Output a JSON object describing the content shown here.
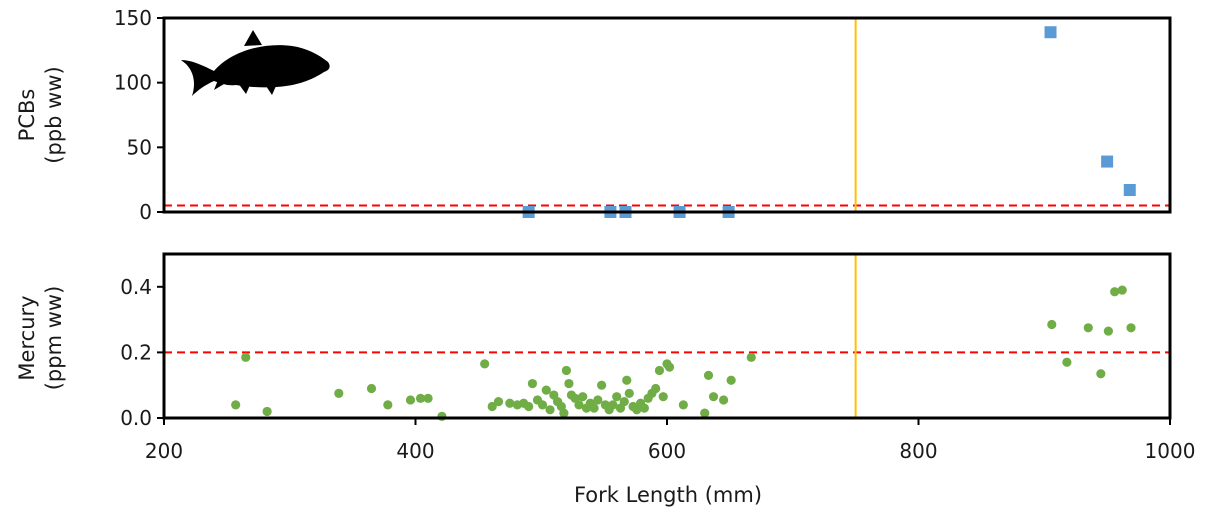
{
  "chart_data": [
    {
      "type": "scatter",
      "panel": "top",
      "ylabel": [
        "PCBs",
        "(ppb ww)"
      ],
      "xlim": [
        200,
        1000
      ],
      "ylim": [
        0,
        150
      ],
      "yticks": [
        0,
        50,
        100,
        150
      ],
      "y_tick_labels": [
        "0",
        "50",
        "100",
        "150"
      ],
      "grid": false,
      "marker": "square",
      "color": "#5b9bd5",
      "points": [
        {
          "x": 490,
          "y": 0
        },
        {
          "x": 555,
          "y": 0
        },
        {
          "x": 567,
          "y": 0
        },
        {
          "x": 610,
          "y": 0
        },
        {
          "x": 649,
          "y": 0
        },
        {
          "x": 905,
          "y": 139
        },
        {
          "x": 950,
          "y": 39
        },
        {
          "x": 968,
          "y": 17
        }
      ],
      "reference_lines": [
        {
          "kind": "horizontal",
          "value": 5,
          "style": "dashed",
          "color": "#ff0000"
        },
        {
          "kind": "vertical",
          "value": 750,
          "style": "solid",
          "color": "#ffc000"
        }
      ],
      "silhouette": "fish-icon"
    },
    {
      "type": "scatter",
      "panel": "bottom",
      "ylabel": [
        "Mercury",
        "(ppm ww)"
      ],
      "xlabel": "Fork Length (mm)",
      "xlim": [
        200,
        1000
      ],
      "ylim": [
        0,
        0.5
      ],
      "xticks": [
        200,
        400,
        600,
        800,
        1000
      ],
      "x_tick_labels": [
        "200",
        "400",
        "600",
        "800",
        "1000"
      ],
      "yticks": [
        0,
        0.2,
        0.4
      ],
      "y_tick_labels": [
        "0.0",
        "0.2",
        "0.4"
      ],
      "grid": false,
      "marker": "circle",
      "color": "#70ad47",
      "points": [
        {
          "x": 257,
          "y": 0.04
        },
        {
          "x": 265,
          "y": 0.185
        },
        {
          "x": 282,
          "y": 0.02
        },
        {
          "x": 339,
          "y": 0.075
        },
        {
          "x": 365,
          "y": 0.09
        },
        {
          "x": 378,
          "y": 0.04
        },
        {
          "x": 396,
          "y": 0.055
        },
        {
          "x": 404,
          "y": 0.06
        },
        {
          "x": 410,
          "y": 0.06
        },
        {
          "x": 421,
          "y": 0.005
        },
        {
          "x": 455,
          "y": 0.165
        },
        {
          "x": 461,
          "y": 0.035
        },
        {
          "x": 466,
          "y": 0.05
        },
        {
          "x": 475,
          "y": 0.045
        },
        {
          "x": 481,
          "y": 0.04
        },
        {
          "x": 486,
          "y": 0.045
        },
        {
          "x": 490,
          "y": 0.035
        },
        {
          "x": 493,
          "y": 0.105
        },
        {
          "x": 497,
          "y": 0.055
        },
        {
          "x": 501,
          "y": 0.04
        },
        {
          "x": 504,
          "y": 0.085
        },
        {
          "x": 507,
          "y": 0.025
        },
        {
          "x": 510,
          "y": 0.07
        },
        {
          "x": 513,
          "y": 0.05
        },
        {
          "x": 516,
          "y": 0.035
        },
        {
          "x": 518,
          "y": 0.015
        },
        {
          "x": 520,
          "y": 0.145
        },
        {
          "x": 522,
          "y": 0.105
        },
        {
          "x": 524,
          "y": 0.07
        },
        {
          "x": 527,
          "y": 0.06
        },
        {
          "x": 530,
          "y": 0.04
        },
        {
          "x": 533,
          "y": 0.065
        },
        {
          "x": 536,
          "y": 0.03
        },
        {
          "x": 539,
          "y": 0.045
        },
        {
          "x": 542,
          "y": 0.03
        },
        {
          "x": 545,
          "y": 0.055
        },
        {
          "x": 548,
          "y": 0.1
        },
        {
          "x": 551,
          "y": 0.04
        },
        {
          "x": 554,
          "y": 0.025
        },
        {
          "x": 557,
          "y": 0.04
        },
        {
          "x": 560,
          "y": 0.065
        },
        {
          "x": 563,
          "y": 0.03
        },
        {
          "x": 566,
          "y": 0.05
        },
        {
          "x": 568,
          "y": 0.115
        },
        {
          "x": 570,
          "y": 0.075
        },
        {
          "x": 573,
          "y": 0.035
        },
        {
          "x": 576,
          "y": 0.025
        },
        {
          "x": 579,
          "y": 0.045
        },
        {
          "x": 582,
          "y": 0.03
        },
        {
          "x": 585,
          "y": 0.06
        },
        {
          "x": 588,
          "y": 0.075
        },
        {
          "x": 591,
          "y": 0.09
        },
        {
          "x": 594,
          "y": 0.145
        },
        {
          "x": 597,
          "y": 0.065
        },
        {
          "x": 600,
          "y": 0.165
        },
        {
          "x": 602,
          "y": 0.155
        },
        {
          "x": 613,
          "y": 0.04
        },
        {
          "x": 630,
          "y": 0.015
        },
        {
          "x": 633,
          "y": 0.13
        },
        {
          "x": 637,
          "y": 0.065
        },
        {
          "x": 645,
          "y": 0.055
        },
        {
          "x": 651,
          "y": 0.115
        },
        {
          "x": 667,
          "y": 0.185
        },
        {
          "x": 906,
          "y": 0.285
        },
        {
          "x": 918,
          "y": 0.17
        },
        {
          "x": 935,
          "y": 0.275
        },
        {
          "x": 945,
          "y": 0.135
        },
        {
          "x": 951,
          "y": 0.265
        },
        {
          "x": 956,
          "y": 0.385
        },
        {
          "x": 962,
          "y": 0.39
        },
        {
          "x": 969,
          "y": 0.275
        }
      ],
      "reference_lines": [
        {
          "kind": "horizontal",
          "value": 0.5,
          "style": "solid",
          "color": "#ff0000"
        },
        {
          "kind": "horizontal",
          "value": 0.2,
          "style": "dashed",
          "color": "#ff0000"
        },
        {
          "kind": "vertical",
          "value": 750,
          "style": "solid",
          "color": "#ffc000"
        }
      ]
    }
  ]
}
